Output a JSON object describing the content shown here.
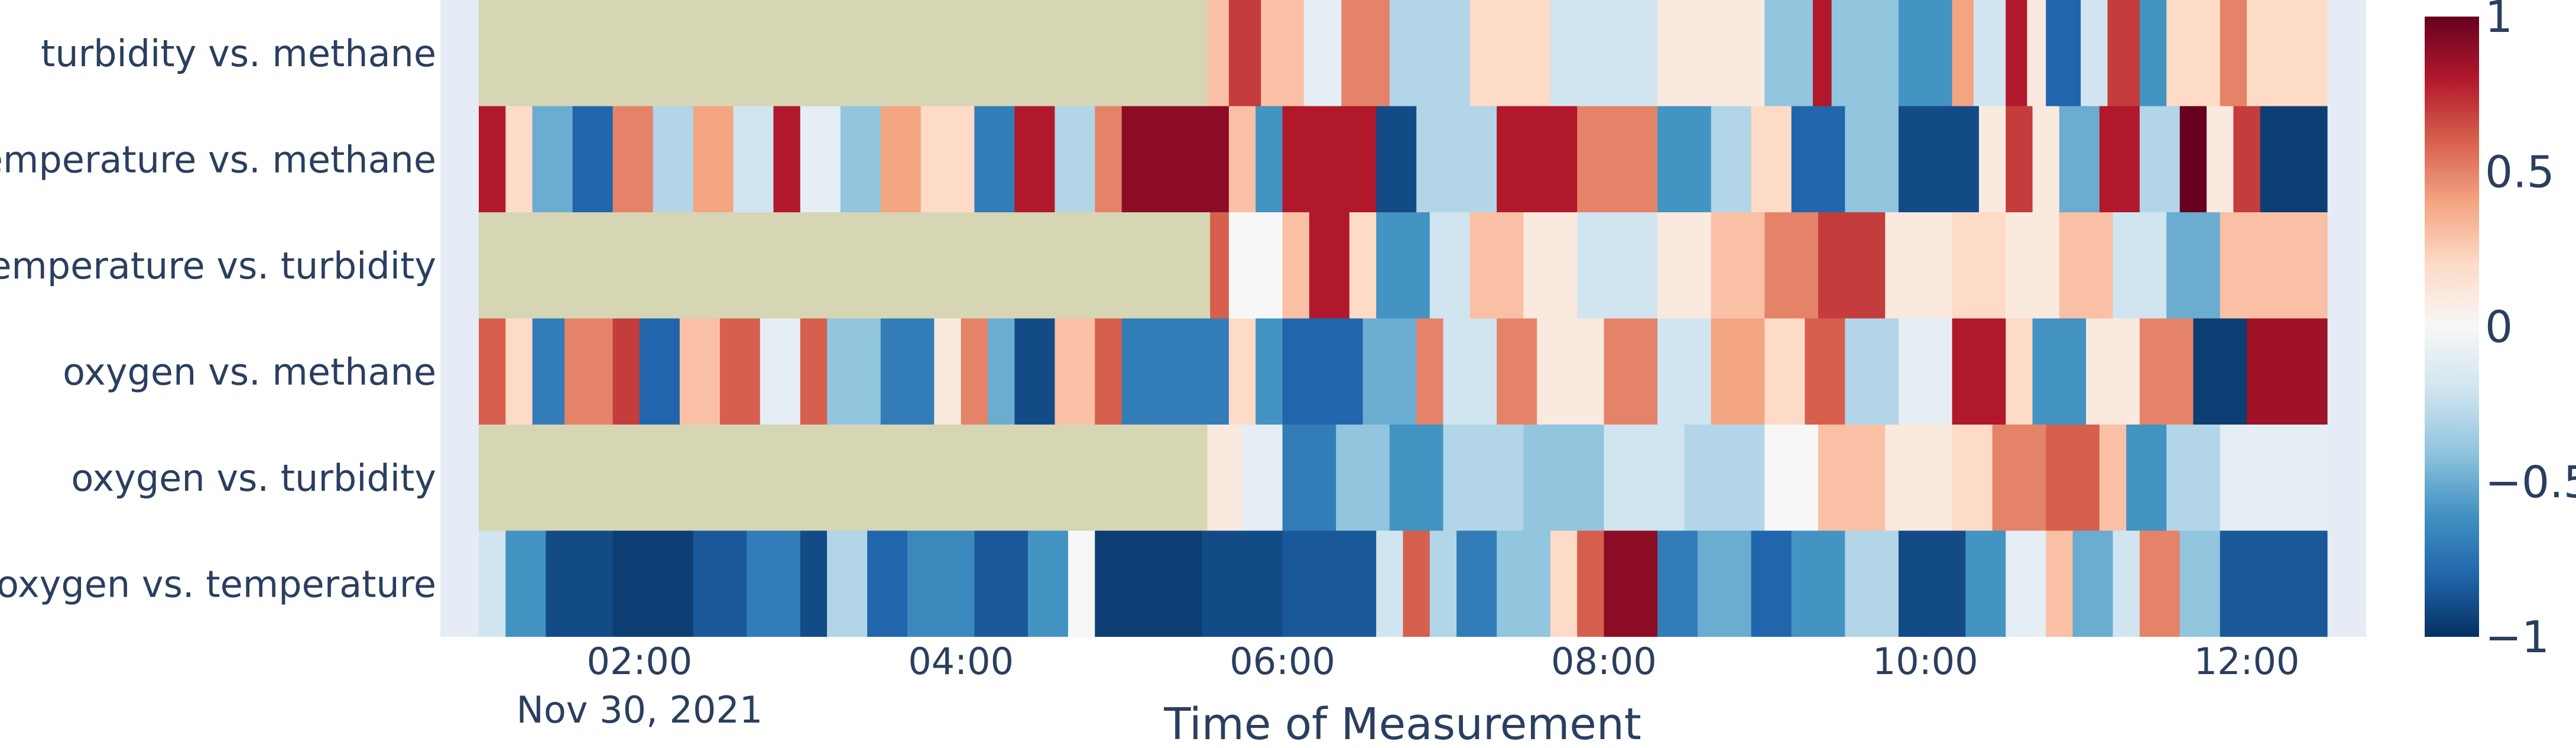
{
  "chart_data": {
    "type": "heatmap",
    "title": "",
    "xlabel": "Time of Measurement",
    "ylabel": "",
    "x_range": [
      "2021-11-30T01:00",
      "2021-11-30T12:30"
    ],
    "x_ticks": [
      {
        "time": "2021-11-30T02:00",
        "label": "02:00",
        "sublabel": "Nov 30, 2021"
      },
      {
        "time": "2021-11-30T04:00",
        "label": "04:00",
        "sublabel": ""
      },
      {
        "time": "2021-11-30T06:00",
        "label": "06:00",
        "sublabel": ""
      },
      {
        "time": "2021-11-30T08:00",
        "label": "08:00",
        "sublabel": ""
      },
      {
        "time": "2021-11-30T10:00",
        "label": "10:00",
        "sublabel": ""
      },
      {
        "time": "2021-11-30T12:00",
        "label": "12:00",
        "sublabel": ""
      }
    ],
    "rows": [
      "turbidity vs. methane",
      "temperature vs. methane",
      "temperature vs. turbidity",
      "oxygen vs. methane",
      "oxygen vs. turbidity",
      "oxygen vs. temperature"
    ],
    "missing_color": "#d6d6b4",
    "segments": [
      {
        "row": "turbidity vs. methane",
        "cells": [
          [
            "01:00",
            "05:32",
            null
          ],
          [
            "05:32",
            "05:40",
            0.3
          ],
          [
            "05:40",
            "05:52",
            0.7
          ],
          [
            "05:52",
            "06:08",
            0.3
          ],
          [
            "06:08",
            "06:22",
            -0.1
          ],
          [
            "06:22",
            "06:40",
            0.5
          ],
          [
            "06:40",
            "07:10",
            -0.3
          ],
          [
            "07:10",
            "07:40",
            0.2
          ],
          [
            "07:40",
            "08:20",
            -0.2
          ],
          [
            "08:20",
            "09:00",
            0.1
          ],
          [
            "09:00",
            "09:18",
            -0.4
          ],
          [
            "09:18",
            "09:25",
            0.8
          ],
          [
            "09:25",
            "09:50",
            -0.4
          ],
          [
            "09:50",
            "10:10",
            -0.6
          ],
          [
            "10:10",
            "10:18",
            0.4
          ],
          [
            "10:18",
            "10:30",
            -0.2
          ],
          [
            "10:30",
            "10:38",
            0.8
          ],
          [
            "10:38",
            "10:45",
            0.1
          ],
          [
            "10:45",
            "10:58",
            -0.8
          ],
          [
            "10:58",
            "11:08",
            -0.2
          ],
          [
            "11:08",
            "11:20",
            0.7
          ],
          [
            "11:20",
            "11:30",
            -0.6
          ],
          [
            "11:30",
            "11:50",
            0.2
          ],
          [
            "11:50",
            "12:00",
            0.5
          ],
          [
            "12:00",
            "12:30",
            0.2
          ]
        ]
      },
      {
        "row": "temperature vs. methane",
        "cells": [
          [
            "01:00",
            "01:10",
            0.8
          ],
          [
            "01:10",
            "01:20",
            0.2
          ],
          [
            "01:20",
            "01:35",
            -0.5
          ],
          [
            "01:35",
            "01:50",
            -0.8
          ],
          [
            "01:50",
            "02:05",
            0.5
          ],
          [
            "02:05",
            "02:20",
            -0.3
          ],
          [
            "02:20",
            "02:35",
            0.4
          ],
          [
            "02:35",
            "02:50",
            -0.2
          ],
          [
            "02:50",
            "03:00",
            0.8
          ],
          [
            "03:00",
            "03:15",
            -0.1
          ],
          [
            "03:15",
            "03:30",
            -0.4
          ],
          [
            "03:30",
            "03:45",
            0.4
          ],
          [
            "03:45",
            "04:05",
            0.2
          ],
          [
            "04:05",
            "04:20",
            -0.7
          ],
          [
            "04:20",
            "04:35",
            0.8
          ],
          [
            "04:35",
            "04:50",
            -0.3
          ],
          [
            "04:50",
            "05:00",
            0.5
          ],
          [
            "05:00",
            "05:40",
            0.9
          ],
          [
            "05:40",
            "05:50",
            0.3
          ],
          [
            "05:50",
            "06:00",
            -0.6
          ],
          [
            "06:00",
            "06:35",
            0.8
          ],
          [
            "06:35",
            "06:50",
            -0.9
          ],
          [
            "06:50",
            "07:20",
            -0.3
          ],
          [
            "07:20",
            "07:50",
            0.8
          ],
          [
            "07:50",
            "08:20",
            0.5
          ],
          [
            "08:20",
            "08:40",
            -0.6
          ],
          [
            "08:40",
            "08:55",
            -0.3
          ],
          [
            "08:55",
            "09:10",
            0.2
          ],
          [
            "09:10",
            "09:30",
            -0.8
          ],
          [
            "09:30",
            "09:50",
            -0.4
          ],
          [
            "09:50",
            "10:20",
            -0.9
          ],
          [
            "10:20",
            "10:30",
            0.1
          ],
          [
            "10:30",
            "10:40",
            0.7
          ],
          [
            "10:40",
            "10:50",
            0.1
          ],
          [
            "10:50",
            "11:05",
            -0.5
          ],
          [
            "11:05",
            "11:20",
            0.8
          ],
          [
            "11:20",
            "11:35",
            -0.3
          ],
          [
            "11:35",
            "11:45",
            1.0
          ],
          [
            "11:45",
            "11:55",
            0.1
          ],
          [
            "11:55",
            "12:05",
            0.7
          ],
          [
            "12:05",
            "12:30",
            -0.95
          ]
        ]
      },
      {
        "row": "temperature vs. turbidity",
        "cells": [
          [
            "01:00",
            "05:33",
            null
          ],
          [
            "05:33",
            "05:40",
            0.6
          ],
          [
            "05:40",
            "06:00",
            0.0
          ],
          [
            "06:00",
            "06:10",
            0.3
          ],
          [
            "06:10",
            "06:25",
            0.8
          ],
          [
            "06:25",
            "06:35",
            0.2
          ],
          [
            "06:35",
            "06:55",
            -0.6
          ],
          [
            "06:55",
            "07:10",
            -0.2
          ],
          [
            "07:10",
            "07:30",
            0.3
          ],
          [
            "07:30",
            "07:50",
            0.1
          ],
          [
            "07:50",
            "08:20",
            -0.2
          ],
          [
            "08:20",
            "08:40",
            0.1
          ],
          [
            "08:40",
            "09:00",
            0.3
          ],
          [
            "09:00",
            "09:20",
            0.5
          ],
          [
            "09:20",
            "09:45",
            0.7
          ],
          [
            "09:45",
            "10:10",
            0.1
          ],
          [
            "10:10",
            "10:30",
            0.2
          ],
          [
            "10:30",
            "10:50",
            0.1
          ],
          [
            "10:50",
            "11:10",
            0.3
          ],
          [
            "11:10",
            "11:30",
            -0.2
          ],
          [
            "11:30",
            "11:50",
            -0.5
          ],
          [
            "11:50",
            "12:30",
            0.3
          ]
        ]
      },
      {
        "row": "oxygen vs. methane",
        "cells": [
          [
            "01:00",
            "01:10",
            0.6
          ],
          [
            "01:10",
            "01:20",
            0.2
          ],
          [
            "01:20",
            "01:32",
            -0.7
          ],
          [
            "01:32",
            "01:50",
            0.5
          ],
          [
            "01:50",
            "02:00",
            0.7
          ],
          [
            "02:00",
            "02:15",
            -0.8
          ],
          [
            "02:15",
            "02:30",
            0.3
          ],
          [
            "02:30",
            "02:45",
            0.6
          ],
          [
            "02:45",
            "03:00",
            -0.1
          ],
          [
            "03:00",
            "03:10",
            0.6
          ],
          [
            "03:10",
            "03:30",
            -0.4
          ],
          [
            "03:30",
            "03:50",
            -0.7
          ],
          [
            "03:50",
            "04:00",
            0.1
          ],
          [
            "04:00",
            "04:10",
            0.5
          ],
          [
            "04:10",
            "04:20",
            -0.5
          ],
          [
            "04:20",
            "04:35",
            -0.9
          ],
          [
            "04:35",
            "04:50",
            0.3
          ],
          [
            "04:50",
            "05:00",
            0.6
          ],
          [
            "05:00",
            "05:40",
            -0.7
          ],
          [
            "05:40",
            "05:50",
            0.2
          ],
          [
            "05:50",
            "06:00",
            -0.6
          ],
          [
            "06:00",
            "06:30",
            -0.8
          ],
          [
            "06:30",
            "06:50",
            -0.5
          ],
          [
            "06:50",
            "07:00",
            0.5
          ],
          [
            "07:00",
            "07:20",
            -0.2
          ],
          [
            "07:20",
            "07:35",
            0.5
          ],
          [
            "07:35",
            "08:00",
            0.1
          ],
          [
            "08:00",
            "08:20",
            0.5
          ],
          [
            "08:20",
            "08:40",
            -0.2
          ],
          [
            "08:40",
            "09:00",
            0.4
          ],
          [
            "09:00",
            "09:15",
            0.2
          ],
          [
            "09:15",
            "09:30",
            0.6
          ],
          [
            "09:30",
            "09:50",
            -0.3
          ],
          [
            "09:50",
            "10:10",
            -0.1
          ],
          [
            "10:10",
            "10:30",
            0.8
          ],
          [
            "10:30",
            "10:40",
            0.2
          ],
          [
            "10:40",
            "11:00",
            -0.6
          ],
          [
            "11:00",
            "11:20",
            0.1
          ],
          [
            "11:20",
            "11:40",
            0.5
          ],
          [
            "11:40",
            "12:00",
            -0.95
          ],
          [
            "12:00",
            "12:30",
            0.85
          ]
        ]
      },
      {
        "row": "oxygen vs. turbidity",
        "cells": [
          [
            "01:00",
            "05:32",
            null
          ],
          [
            "05:32",
            "05:45",
            0.1
          ],
          [
            "05:45",
            "06:00",
            -0.1
          ],
          [
            "06:00",
            "06:20",
            -0.7
          ],
          [
            "06:20",
            "06:40",
            -0.4
          ],
          [
            "06:40",
            "07:00",
            -0.6
          ],
          [
            "07:00",
            "07:30",
            -0.3
          ],
          [
            "07:30",
            "08:00",
            -0.4
          ],
          [
            "08:00",
            "08:30",
            -0.2
          ],
          [
            "08:30",
            "09:00",
            -0.3
          ],
          [
            "09:00",
            "09:20",
            0.0
          ],
          [
            "09:20",
            "09:45",
            0.3
          ],
          [
            "09:45",
            "10:10",
            0.1
          ],
          [
            "10:10",
            "10:25",
            0.2
          ],
          [
            "10:25",
            "10:45",
            0.5
          ],
          [
            "10:45",
            "11:05",
            0.6
          ],
          [
            "11:05",
            "11:15",
            0.3
          ],
          [
            "11:15",
            "11:30",
            -0.6
          ],
          [
            "11:30",
            "11:50",
            -0.3
          ],
          [
            "11:50",
            "12:30",
            -0.1
          ]
        ]
      },
      {
        "row": "oxygen vs. temperature",
        "cells": [
          [
            "01:00",
            "01:10",
            -0.2
          ],
          [
            "01:10",
            "01:25",
            -0.6
          ],
          [
            "01:25",
            "01:50",
            -0.9
          ],
          [
            "01:50",
            "02:20",
            -0.95
          ],
          [
            "02:20",
            "02:40",
            -0.85
          ],
          [
            "02:40",
            "03:00",
            -0.7
          ],
          [
            "03:00",
            "03:10",
            -0.9
          ],
          [
            "03:10",
            "03:25",
            -0.3
          ],
          [
            "03:25",
            "03:40",
            -0.8
          ],
          [
            "03:40",
            "04:05",
            -0.65
          ],
          [
            "04:05",
            "04:25",
            -0.85
          ],
          [
            "04:25",
            "04:40",
            -0.6
          ],
          [
            "04:40",
            "04:50",
            0.0
          ],
          [
            "04:50",
            "05:30",
            -0.95
          ],
          [
            "05:30",
            "06:00",
            -0.9
          ],
          [
            "06:00",
            "06:35",
            -0.85
          ],
          [
            "06:35",
            "06:45",
            -0.2
          ],
          [
            "06:45",
            "06:55",
            0.6
          ],
          [
            "06:55",
            "07:05",
            -0.3
          ],
          [
            "07:05",
            "07:20",
            -0.7
          ],
          [
            "07:20",
            "07:40",
            -0.4
          ],
          [
            "07:40",
            "07:50",
            0.2
          ],
          [
            "07:50",
            "08:00",
            0.6
          ],
          [
            "08:00",
            "08:20",
            0.9
          ],
          [
            "08:20",
            "08:35",
            -0.7
          ],
          [
            "08:35",
            "08:55",
            -0.5
          ],
          [
            "08:55",
            "09:10",
            -0.8
          ],
          [
            "09:10",
            "09:30",
            -0.6
          ],
          [
            "09:30",
            "09:50",
            -0.3
          ],
          [
            "09:50",
            "10:15",
            -0.9
          ],
          [
            "10:15",
            "10:30",
            -0.6
          ],
          [
            "10:30",
            "10:45",
            -0.1
          ],
          [
            "10:45",
            "10:55",
            0.3
          ],
          [
            "10:55",
            "11:10",
            -0.5
          ],
          [
            "11:10",
            "11:20",
            -0.2
          ],
          [
            "11:20",
            "11:35",
            0.5
          ],
          [
            "11:35",
            "11:50",
            -0.4
          ],
          [
            "11:50",
            "12:30",
            -0.85
          ]
        ]
      }
    ],
    "colorscale": "RdBu",
    "zmin": -1,
    "zmax": 1,
    "colorbar_ticks": [
      "1",
      "0.5",
      "0",
      "−0.5",
      "−1"
    ],
    "colorbar_values": [
      1,
      0.5,
      0,
      -0.5,
      -1
    ]
  }
}
